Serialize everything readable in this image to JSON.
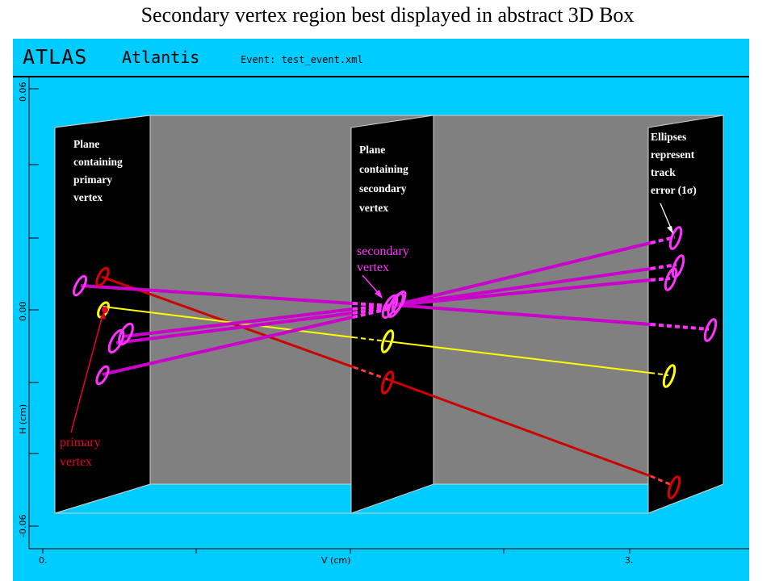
{
  "slide": {
    "title": "Secondary vertex region best displayed in abstract 3D Box"
  },
  "app": {
    "name": "ATLAS",
    "product": "Atlantis",
    "event_label": "Event: test_event.xml"
  },
  "axes": {
    "y_title": "H (cm)",
    "y_ticks": [
      "0.06",
      "0.00",
      "-0.06"
    ],
    "x_title": "V (cm)",
    "x_ticks": [
      "0.",
      "3."
    ]
  },
  "planes": {
    "primary": [
      "Plane",
      "containing",
      "primary",
      "vertex"
    ],
    "secondary": [
      "Plane",
      "containing",
      "secondary",
      "vertex"
    ],
    "error": [
      "Ellipses",
      "represent",
      "track",
      "error (1σ)"
    ]
  },
  "annotations": {
    "secondary_vertex": [
      "secondary",
      "vertex"
    ],
    "primary_vertex": [
      "primary",
      "vertex"
    ]
  },
  "colors": {
    "window_bg": "#00ccff",
    "box_bg": "#808080",
    "plane": "#000000",
    "track_magenta": "#cc00cc",
    "track_yellow": "#ffff00",
    "track_red": "#dd0000"
  }
}
